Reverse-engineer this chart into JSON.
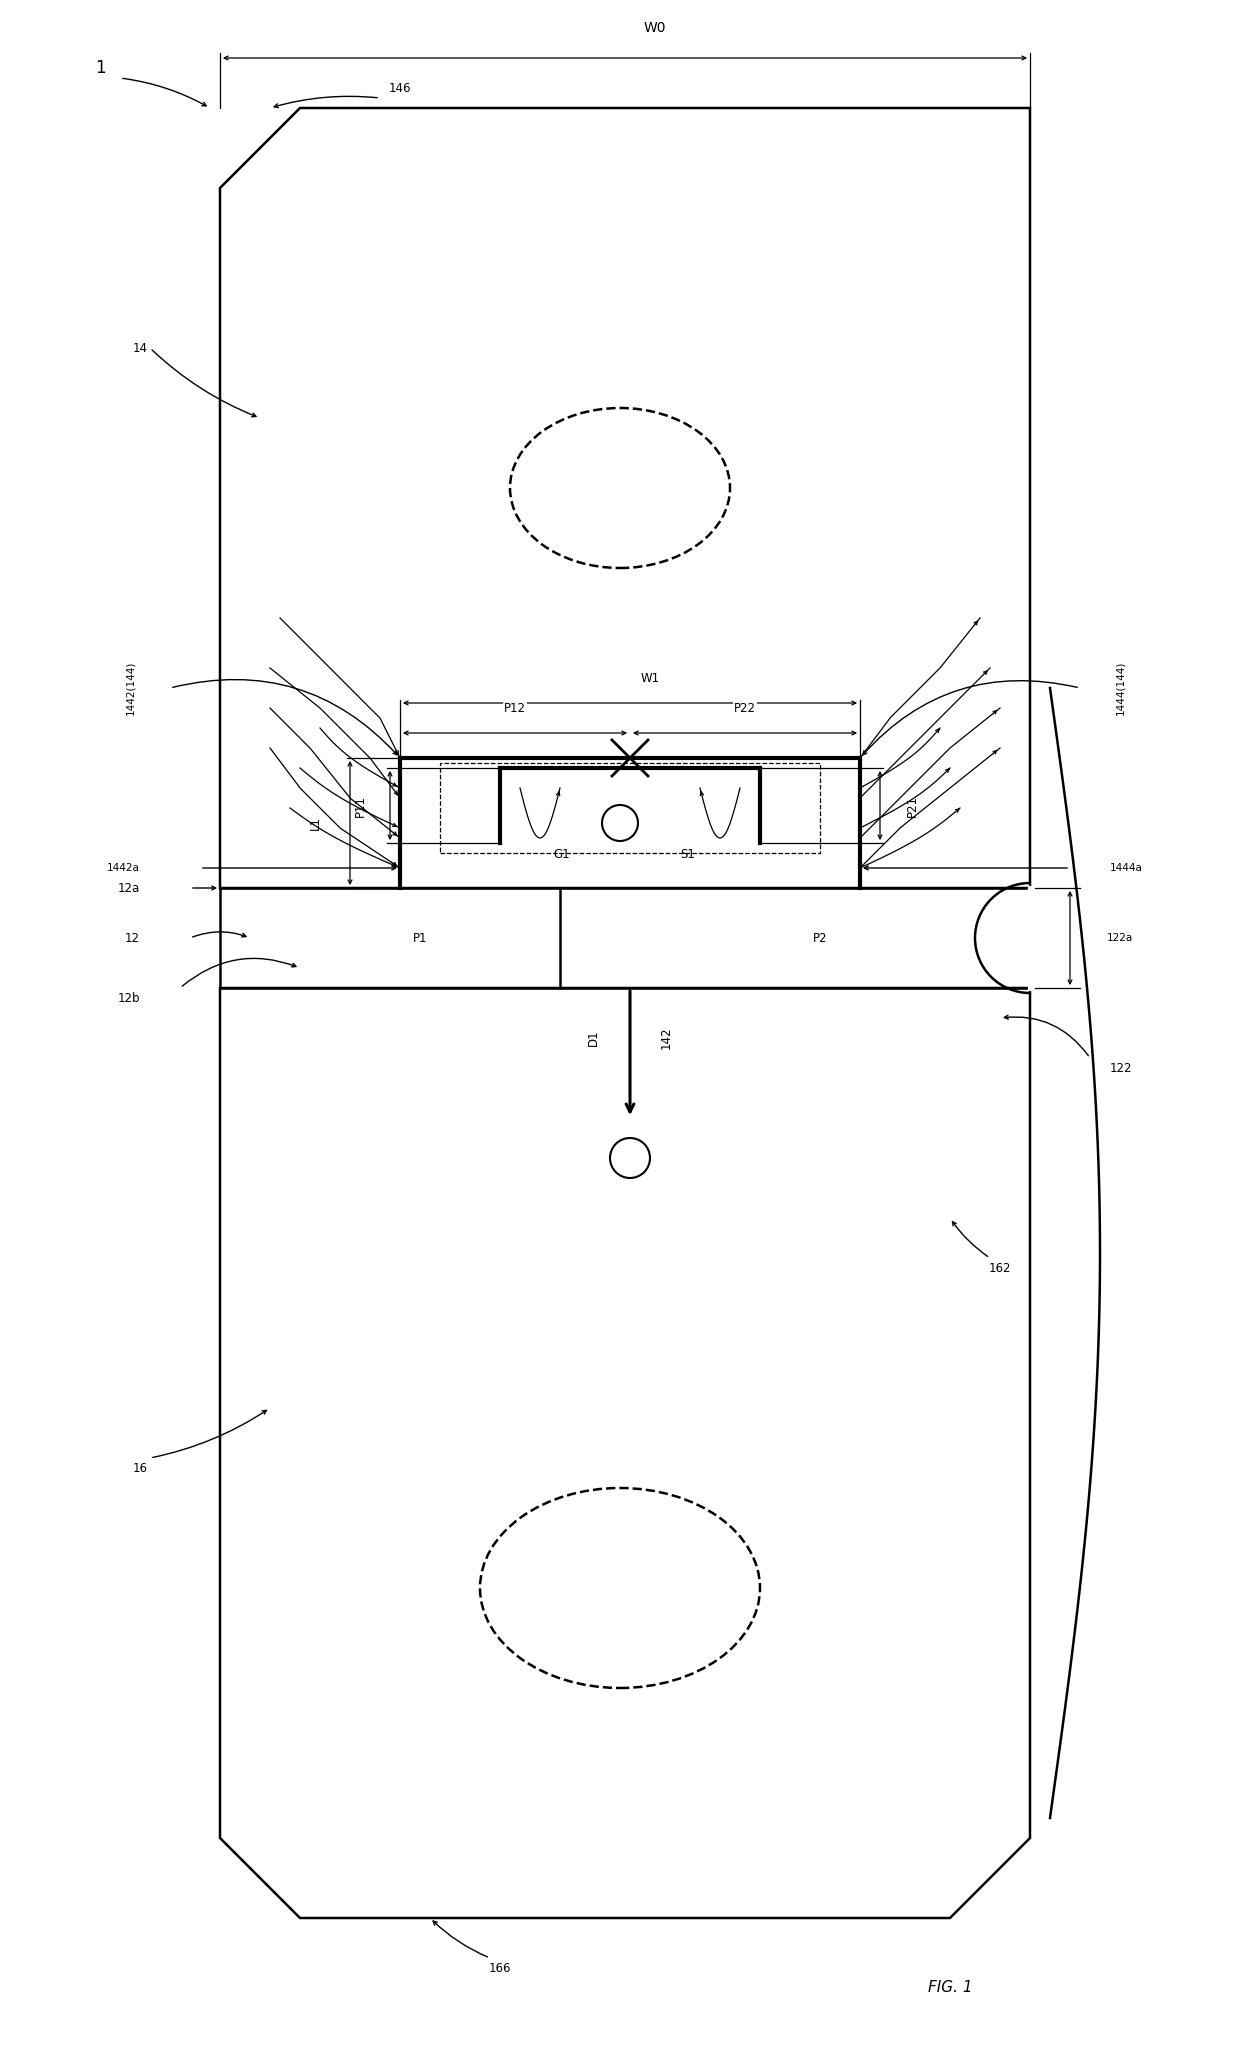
{
  "fig_width": 12.4,
  "fig_height": 20.68,
  "bg_color": "#ffffff",
  "lc": "#000000",
  "title": "FIG. 1",
  "labels": {
    "1": "1",
    "14": "14",
    "16": "16",
    "12": "12",
    "12a": "12a",
    "12b": "12b",
    "122": "122",
    "122a": "122a",
    "142": "142",
    "146": "146",
    "162": "162",
    "166": "166",
    "1442_144": "1442(144)",
    "1444_144": "1444(144)",
    "1442a": "1442a",
    "1444a": "1444a",
    "W0": "W0",
    "W1": "W1",
    "L1": "L1",
    "P11": "P11",
    "P12": "P12",
    "P21": "P21",
    "P22": "P22",
    "P1": "P1",
    "P2": "P2",
    "D1": "D1",
    "G1": "G1",
    "S1": "S1"
  }
}
